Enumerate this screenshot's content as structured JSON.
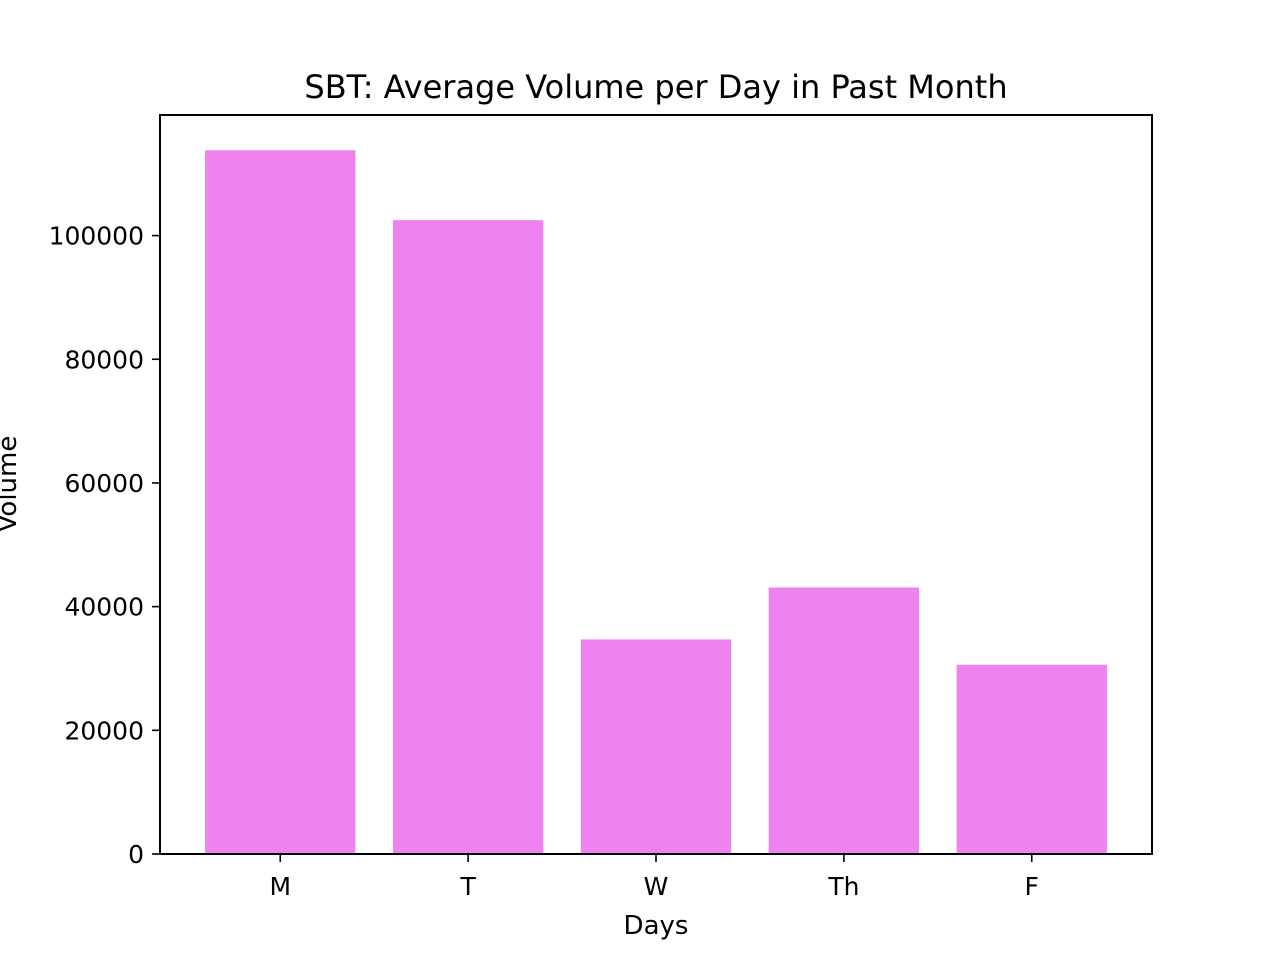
{
  "chart_data": {
    "type": "bar",
    "title": "SBT: Average Volume per Day in Past Month",
    "xlabel": "Days",
    "ylabel": "Volume",
    "categories": [
      "M",
      "T",
      "W",
      "Th",
      "F"
    ],
    "values": [
      113800,
      102500,
      34700,
      43100,
      30600
    ],
    "ylim": [
      0,
      119500
    ],
    "yticks": [
      0,
      20000,
      40000,
      60000,
      80000,
      100000
    ],
    "bar_color": "#ee82ee",
    "grid": false,
    "legend": "none"
  }
}
